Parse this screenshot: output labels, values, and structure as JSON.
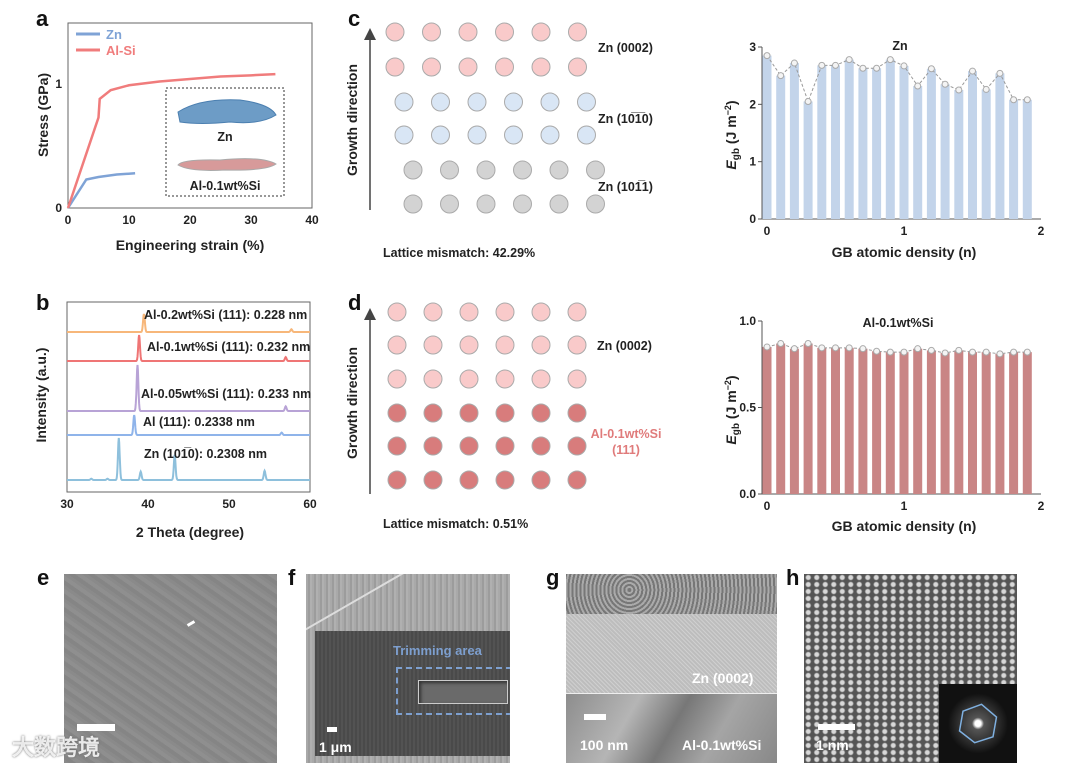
{
  "panels": {
    "a": "a",
    "b": "b",
    "c": "c",
    "d": "d",
    "e": "e",
    "f": "f",
    "g": "g",
    "h": "h"
  },
  "panel_c": {
    "axis_label": "Growth direction",
    "labels": [
      "Zn (0002)",
      "Zn (10̅1̅0)",
      "Zn (101̅1)"
    ],
    "mismatch": "Lattice mismatch: 42.29%"
  },
  "panel_d": {
    "axis_label": "Growth direction",
    "labels": [
      "Zn (0002)",
      "Al-0.1wt%Si",
      "(111)"
    ],
    "mismatch": "Lattice mismatch: 0.51%"
  },
  "panel_e": {
    "watermark": "大数跨境"
  },
  "panel_f": {
    "box_label": "Trimming area",
    "scale": "1 μm"
  },
  "panel_g": {
    "top_label": "Zn (0002)",
    "bottom_label": "Al-0.1wt%Si",
    "scale": "100 nm"
  },
  "panel_h": {
    "scale": "1 nm"
  },
  "colors": {
    "zn": "#7fa3d6",
    "alsi": "#f07c7c",
    "bar_zn": "#c3d4ea",
    "bar_al": "#c98585"
  },
  "chart_data": [
    {
      "type": "line",
      "id": "a",
      "xlabel": "Engineering strain (%)",
      "ylabel": "Stress (GPa)",
      "xlim": [
        0,
        40
      ],
      "ylim": [
        0,
        1.5
      ],
      "xticks": [
        "0",
        "10",
        "20",
        "30",
        "40"
      ],
      "yticks": [
        "0",
        "1"
      ],
      "legend_position": "top-left",
      "inset_labels": [
        "Zn",
        "Al-0.1wt%Si"
      ],
      "series": [
        {
          "name": "Zn",
          "x": [
            0,
            3,
            5,
            8,
            11
          ],
          "y": [
            0,
            0.23,
            0.25,
            0.27,
            0.28
          ]
        },
        {
          "name": "Al-Si",
          "x": [
            0,
            5,
            5.2,
            7,
            10,
            15,
            20,
            25,
            30,
            34
          ],
          "y": [
            0,
            0.73,
            0.88,
            0.95,
            0.99,
            1.02,
            1.04,
            1.06,
            1.07,
            1.08
          ]
        }
      ]
    },
    {
      "type": "line",
      "id": "b",
      "xlabel": "2 Theta (degree)",
      "ylabel": "Intensity (a.u.)",
      "xlim": [
        30,
        60
      ],
      "xticks": [
        "30",
        "40",
        "50",
        "60"
      ],
      "series": [
        {
          "name": "Al-0.2wt%Si (111): 0.228 nm",
          "color": "#f7b77a",
          "peaks": [
            [
              39.5,
              1.0
            ],
            [
              57.7,
              0.15
            ]
          ]
        },
        {
          "name": "Al-0.1wt%Si (111): 0.232 nm",
          "color": "#ef7575",
          "peaks": [
            [
              38.9,
              1.0
            ],
            [
              57.0,
              0.15
            ]
          ]
        },
        {
          "name": "Al-0.05wt%Si (111): 0.233 nm",
          "color": "#b8a3d6",
          "peaks": [
            [
              38.7,
              1.0
            ],
            [
              57.0,
              0.1
            ]
          ]
        },
        {
          "name": "Al (111): 0.2338 nm",
          "color": "#8fb4ea",
          "peaks": [
            [
              38.3,
              1.0
            ],
            [
              56.5,
              0.12
            ]
          ]
        },
        {
          "name": "Zn (101̅0): 0.2308 nm",
          "color": "#8ec0dc",
          "peaks": [
            [
              36.4,
              1.0
            ],
            [
              39.1,
              0.2
            ],
            [
              43.3,
              0.6
            ],
            [
              54.4,
              0.22
            ],
            [
              33,
              0.03
            ],
            [
              35,
              0.03
            ]
          ]
        }
      ]
    },
    {
      "type": "bar",
      "id": "zn-egb",
      "title": "Zn",
      "xlabel": "GB atomic density (n)",
      "ylabel": "E_gb (J m^-2)",
      "xlim": [
        0,
        2
      ],
      "ylim": [
        0,
        3
      ],
      "xticks": [
        "0",
        "1",
        "2"
      ],
      "yticks": [
        "0",
        "1",
        "2",
        "3"
      ],
      "x": [
        0,
        0.1,
        0.2,
        0.3,
        0.4,
        0.5,
        0.6,
        0.7,
        0.8,
        0.9,
        1.0,
        1.1,
        1.2,
        1.3,
        1.4,
        1.5,
        1.6,
        1.7,
        1.8,
        1.9
      ],
      "values": [
        2.85,
        2.5,
        2.72,
        2.05,
        2.68,
        2.68,
        2.78,
        2.63,
        2.63,
        2.78,
        2.67,
        2.32,
        2.62,
        2.35,
        2.25,
        2.58,
        2.26,
        2.54,
        2.08,
        2.08
      ]
    },
    {
      "type": "bar",
      "id": "al-egb",
      "title": "Al-0.1wt%Si",
      "xlabel": "GB atomic density (n)",
      "ylabel": "E_gb (J m^-2)",
      "xlim": [
        0,
        2
      ],
      "ylim": [
        0,
        1.0
      ],
      "xticks": [
        "0",
        "1",
        "2"
      ],
      "yticks": [
        "0.0",
        "0.5",
        "1.0"
      ],
      "x": [
        0,
        0.1,
        0.2,
        0.3,
        0.4,
        0.5,
        0.6,
        0.7,
        0.8,
        0.9,
        1.0,
        1.1,
        1.2,
        1.3,
        1.4,
        1.5,
        1.6,
        1.7,
        1.8,
        1.9
      ],
      "values": [
        0.85,
        0.87,
        0.84,
        0.87,
        0.845,
        0.845,
        0.845,
        0.84,
        0.825,
        0.82,
        0.82,
        0.84,
        0.83,
        0.815,
        0.83,
        0.82,
        0.82,
        0.81,
        0.82,
        0.82
      ]
    }
  ]
}
